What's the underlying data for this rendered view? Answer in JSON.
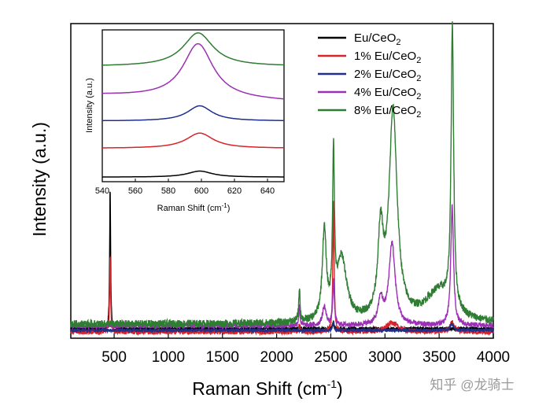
{
  "watermark": "知乎 @龙骑士",
  "chart_data": [
    {
      "id": "main",
      "type": "line",
      "title": "",
      "xlabel": "Raman Shift (cm",
      "xlabel_sup": "-1",
      "xlabel_end": ")",
      "ylabel": "Intensity (a.u.)",
      "xlim": [
        100,
        4000
      ],
      "ylim": [
        0,
        1
      ],
      "x_ticks": [
        500,
        1000,
        1500,
        2000,
        2500,
        3000,
        3500,
        4000
      ],
      "y_ticks_shown": false,
      "legend_position": "top-right",
      "series": [
        {
          "name": "Eu/CeO",
          "sub": "2",
          "color": "#000000",
          "baseline": 0.03,
          "peaks": [
            [
              463,
              0.45,
              5
            ],
            [
              2210,
              0.01,
              6
            ],
            [
              2520,
              0.02,
              6
            ]
          ],
          "noise": 0.006
        },
        {
          "name": "1% Eu/CeO",
          "sub": "2",
          "color": "#d8232a",
          "baseline": 0.02,
          "peaks": [
            [
              463,
              0.25,
              5
            ],
            [
              2210,
              0.02,
              8
            ],
            [
              2525,
              0.42,
              7
            ],
            [
              3065,
              0.03,
              60
            ],
            [
              3620,
              0.03,
              25
            ]
          ],
          "noise": 0.008
        },
        {
          "name": "2% Eu/CeO",
          "sub": "2",
          "color": "#1f2f8a",
          "baseline": 0.025,
          "peaks": [
            [
              2525,
              0.03,
              7
            ],
            [
              3620,
              0.02,
              20
            ]
          ],
          "noise": 0.005
        },
        {
          "name": "4% Eu/CeO",
          "sub": "2",
          "color": "#9b30b5",
          "baseline": 0.04,
          "peaks": [
            [
              2210,
              0.06,
              7
            ],
            [
              2440,
              0.06,
              20
            ],
            [
              2525,
              0.14,
              9
            ],
            [
              2960,
              0.08,
              25
            ],
            [
              3065,
              0.26,
              35
            ],
            [
              3620,
              0.38,
              15
            ]
          ],
          "noise": 0.008
        },
        {
          "name": "8% Eu/CeO",
          "sub": "2",
          "color": "#2e7d32",
          "baseline": 0.045,
          "peaks": [
            [
              2210,
              0.1,
              8
            ],
            [
              2440,
              0.28,
              22
            ],
            [
              2525,
              0.5,
              10
            ],
            [
              2600,
              0.2,
              55
            ],
            [
              2960,
              0.26,
              30
            ],
            [
              3075,
              0.66,
              45
            ],
            [
              3500,
              0.1,
              150
            ],
            [
              3622,
              0.89,
              14
            ]
          ],
          "noise": 0.012
        }
      ]
    },
    {
      "id": "inset",
      "type": "line",
      "title": "",
      "xlabel": "Raman Shift (cm",
      "xlabel_sup": "-1",
      "xlabel_end": ")",
      "ylabel": "Intensity (a.u.)",
      "xlim": [
        540,
        650
      ],
      "ylim": [
        0,
        1
      ],
      "x_ticks": [
        540,
        560,
        580,
        600,
        620,
        640
      ],
      "y_ticks_shown": false,
      "series": [
        {
          "name": "Eu/CeO",
          "sub": "2",
          "color": "#000000",
          "offset": 0.03,
          "peak_x": 599,
          "height": 0.04,
          "width": 9,
          "slope": 0.0
        },
        {
          "name": "1% Eu/CeO",
          "sub": "2",
          "color": "#d8232a",
          "offset": 0.22,
          "peak_x": 599,
          "height": 0.1,
          "width": 10,
          "slope": 0.0
        },
        {
          "name": "2% Eu/CeO",
          "sub": "2",
          "color": "#1f2f8a",
          "offset": 0.4,
          "peak_x": 599,
          "height": 0.1,
          "width": 9,
          "slope": 0.0
        },
        {
          "name": "4% Eu/CeO",
          "sub": "2",
          "color": "#9b30b5",
          "offset": 0.57,
          "peak_x": 598,
          "height": 0.36,
          "width": 11,
          "slope": 0.04
        },
        {
          "name": "8% Eu/CeO",
          "sub": "2",
          "color": "#2e7d32",
          "offset": 0.76,
          "peak_x": 598,
          "height": 0.22,
          "width": 11,
          "slope": 0.0
        }
      ]
    }
  ]
}
